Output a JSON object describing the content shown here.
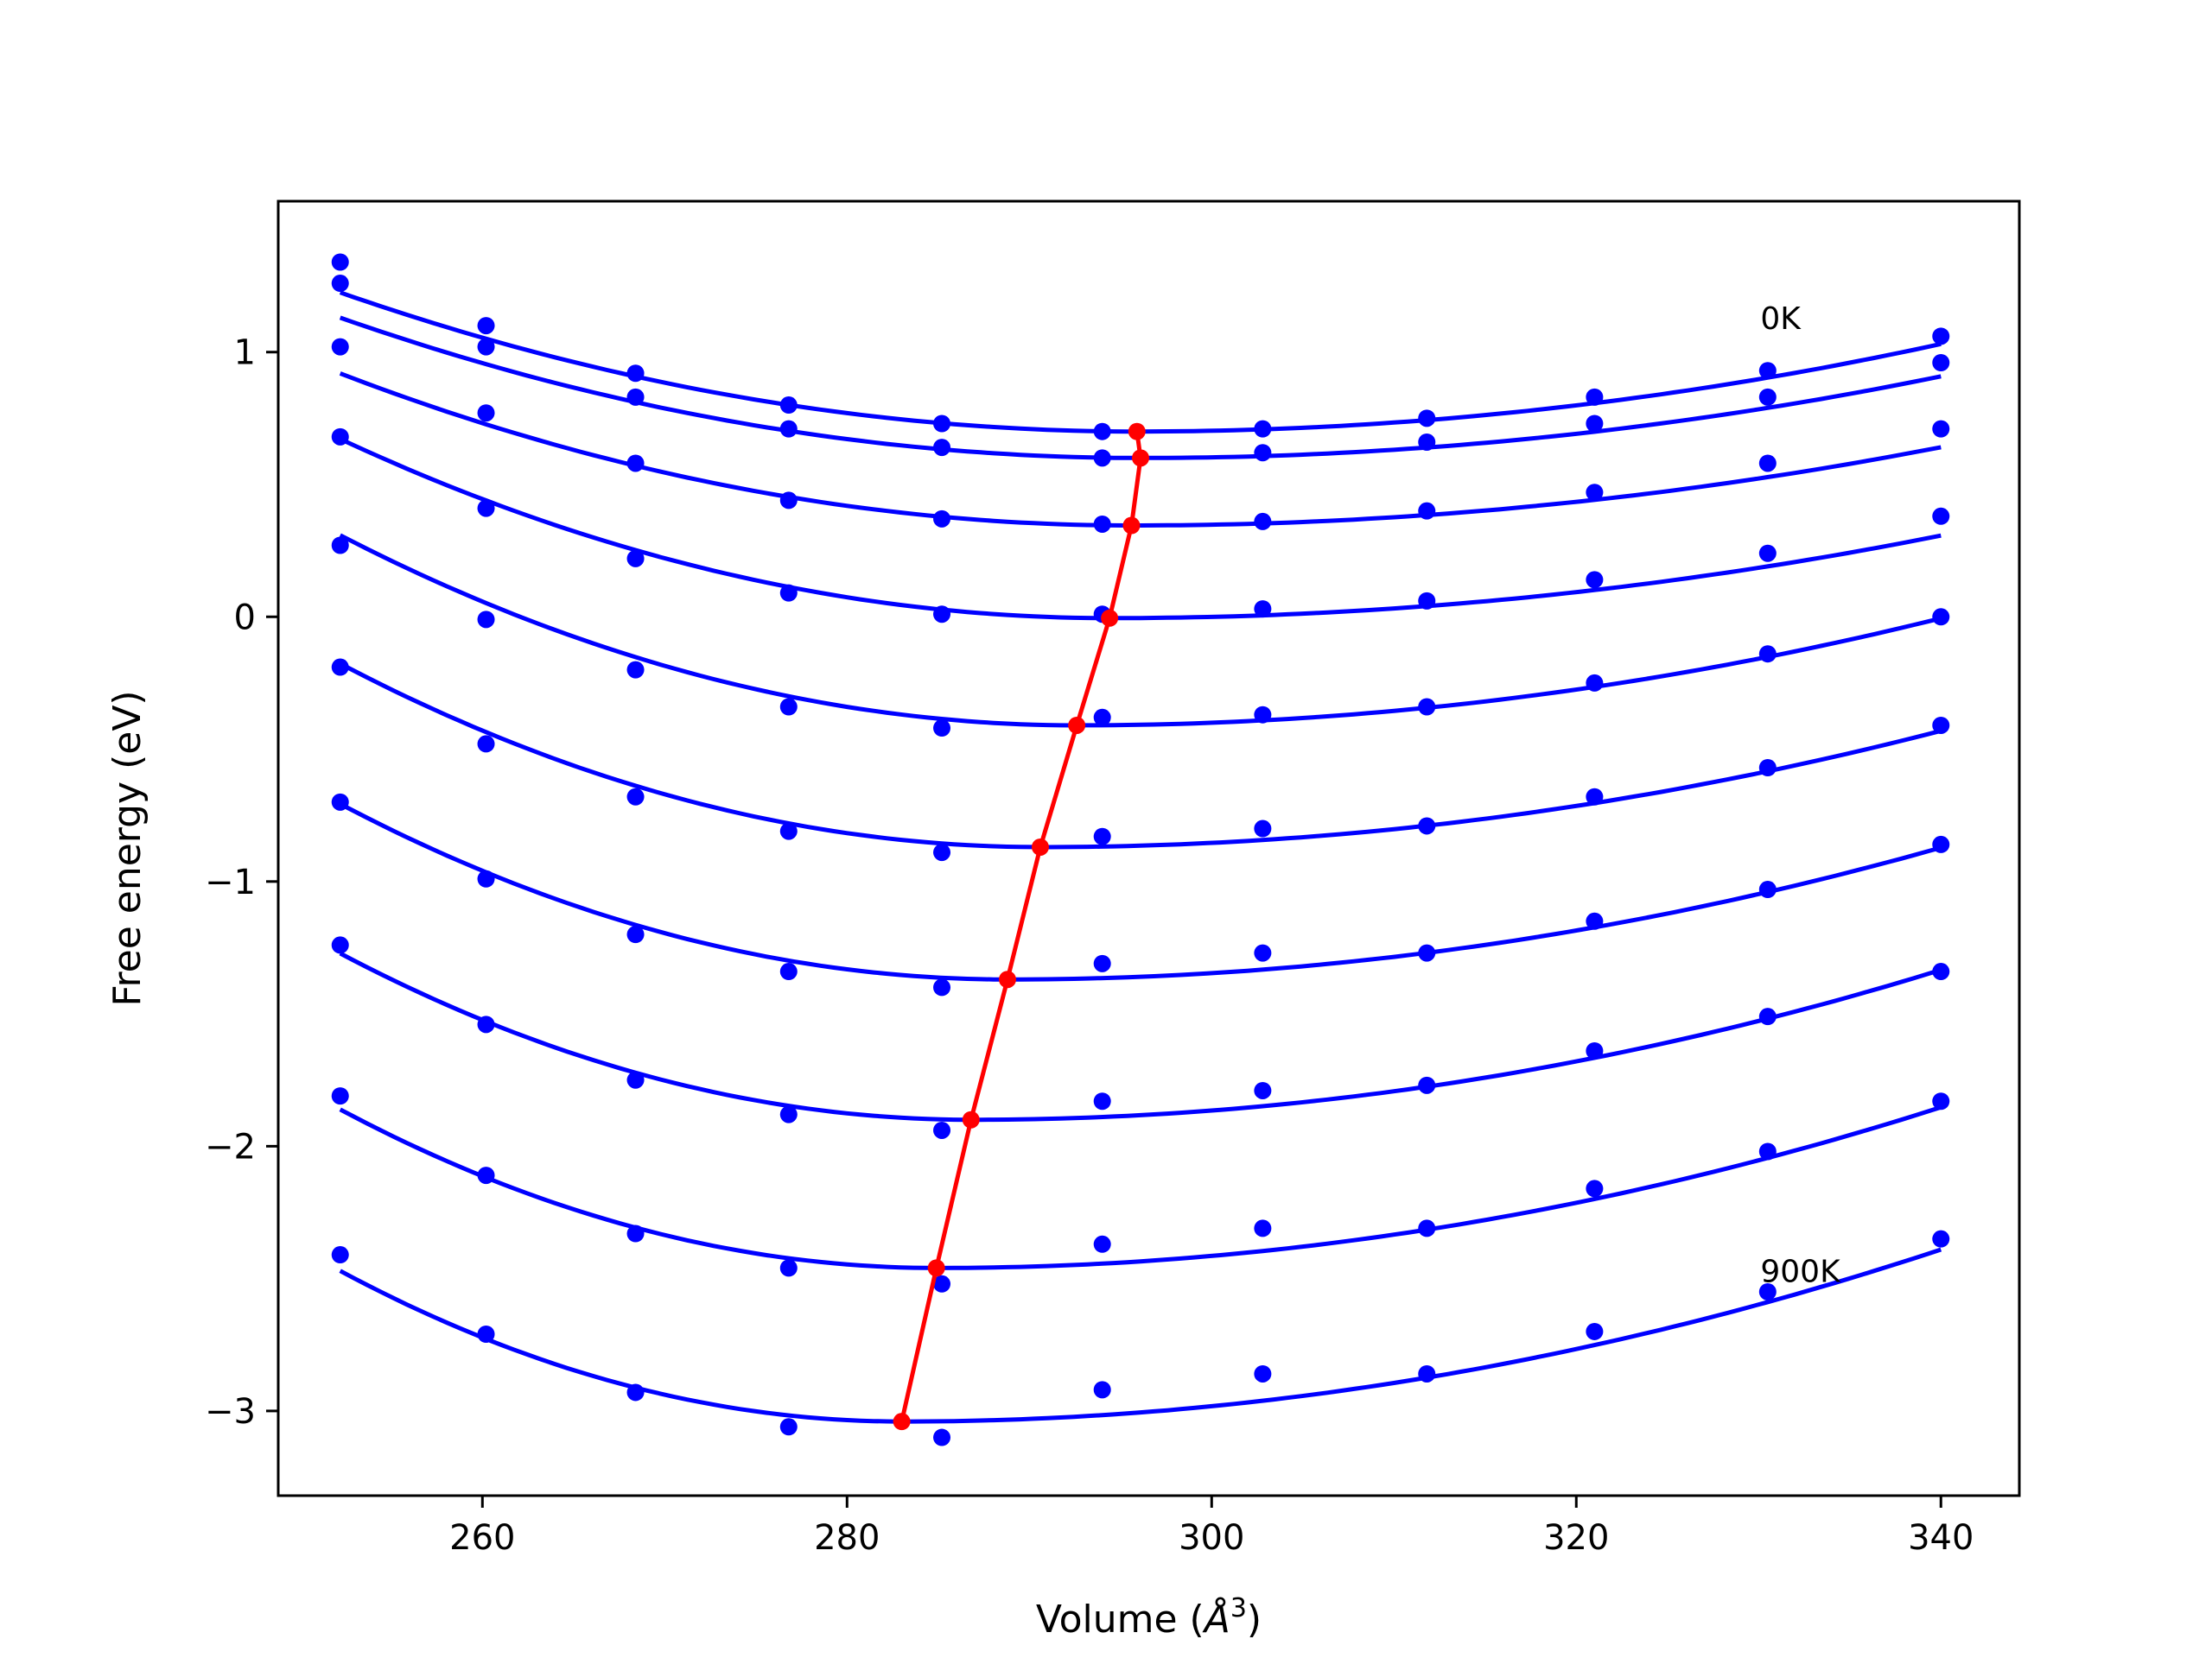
{
  "chart_data": {
    "type": "line",
    "xlabel": "Volume (",
    "xlabel_unit": "Å",
    "xlabel_exp": "3",
    "xlabel_close": ")",
    "ylabel": "Free energy (eV)",
    "xlim": [
      248.8,
      344.3
    ],
    "ylim": [
      -3.32,
      1.57
    ],
    "xticks": [
      260,
      280,
      300,
      320,
      340
    ],
    "xtick_labels": [
      "260",
      "280",
      "300",
      "320",
      "340"
    ],
    "yticks": [
      1,
      0,
      -1,
      -2,
      -3
    ],
    "ytick_labels": [
      "1",
      "0",
      "−1",
      "−2",
      "−3"
    ],
    "grid": false,
    "annotations": [
      {
        "text": "0K",
        "x": 330.1,
        "y": 1.13
      },
      {
        "text": "900K",
        "x": 330.1,
        "y": -2.47
      }
    ],
    "colors": {
      "curves": "#0000ff",
      "minimum_path": "#ff0000",
      "frame": "#000000"
    },
    "volumes": [
      252.2,
      260.2,
      268.4,
      276.8,
      285.2,
      294.0,
      302.8,
      311.8,
      321.0,
      330.5,
      340.0
    ],
    "series": [
      {
        "points": [
          1.34,
          1.1,
          0.92,
          0.8,
          0.73,
          0.7,
          0.71,
          0.75,
          0.83,
          0.93,
          1.06
        ],
        "fit_min": [
          295.9,
          0.7
        ],
        "curv": [
          0.000275,
          0.00017
        ]
      },
      {
        "points": [
          1.26,
          1.02,
          0.83,
          0.71,
          0.64,
          0.6,
          0.62,
          0.66,
          0.73,
          0.83,
          0.96
        ],
        "fit_min": [
          296.1,
          0.6
        ],
        "curv": [
          0.000275,
          0.00016
        ]
      },
      {
        "points": [
          1.02,
          0.77,
          0.58,
          0.44,
          0.37,
          0.35,
          0.36,
          0.4,
          0.47,
          0.58,
          0.71
        ],
        "fit_min": [
          295.6,
          0.345
        ],
        "curv": [
          0.000305,
          0.00015
        ]
      },
      {
        "points": [
          0.68,
          0.41,
          0.22,
          0.09,
          0.01,
          0.01,
          0.03,
          0.06,
          0.14,
          0.24,
          0.38
        ],
        "fit_min": [
          294.4,
          -0.005
        ],
        "curv": [
          0.00038,
          0.00015
        ]
      },
      {
        "points": [
          0.27,
          -0.01,
          -0.2,
          -0.34,
          -0.42,
          -0.38,
          -0.37,
          -0.34,
          -0.25,
          -0.14,
          0.0
        ],
        "fit_min": [
          292.6,
          -0.41
        ],
        "curv": [
          0.00044,
          0.00018
        ]
      },
      {
        "points": [
          -0.19,
          -0.48,
          -0.68,
          -0.81,
          -0.89,
          -0.83,
          -0.8,
          -0.79,
          -0.68,
          -0.57,
          -0.41
        ],
        "fit_min": [
          290.6,
          -0.87
        ],
        "curv": [
          0.00047,
          0.00018
        ]
      },
      {
        "points": [
          -0.7,
          -0.99,
          -1.2,
          -1.34,
          -1.4,
          -1.31,
          -1.27,
          -1.27,
          -1.15,
          -1.03,
          -0.86
        ],
        "fit_min": [
          288.8,
          -1.37
        ],
        "curv": [
          0.000495,
          0.00019
        ]
      },
      {
        "points": [
          -1.24,
          -1.54,
          -1.75,
          -1.88,
          -1.94,
          -1.83,
          -1.79,
          -1.77,
          -1.64,
          -1.51,
          -1.34
        ],
        "fit_min": [
          286.8,
          -1.9
        ],
        "curv": [
          0.000525,
          0.0002
        ]
      },
      {
        "points": [
          -1.81,
          -2.11,
          -2.33,
          -2.46,
          -2.52,
          -2.37,
          -2.31,
          -2.31,
          -2.16,
          -2.02,
          -1.83
        ],
        "fit_min": [
          284.9,
          -2.46
        ],
        "curv": [
          0.00056,
          0.0002
        ]
      },
      {
        "points": [
          -2.41,
          -2.71,
          -2.93,
          -3.06,
          -3.1,
          -2.92,
          -2.86,
          -2.86,
          -2.7,
          -2.55,
          -2.35
        ],
        "fit_min": [
          283.0,
          -3.04
        ],
        "curv": [
          0.0006,
          0.0002
        ]
      }
    ],
    "minimum_path": {
      "x": [
        295.9,
        296.1,
        295.6,
        294.4,
        292.6,
        290.6,
        288.8,
        286.8,
        284.9,
        283.0
      ],
      "y": [
        0.7,
        0.6,
        0.345,
        -0.005,
        -0.41,
        -0.87,
        -1.37,
        -1.9,
        -2.46,
        -3.04
      ]
    }
  }
}
